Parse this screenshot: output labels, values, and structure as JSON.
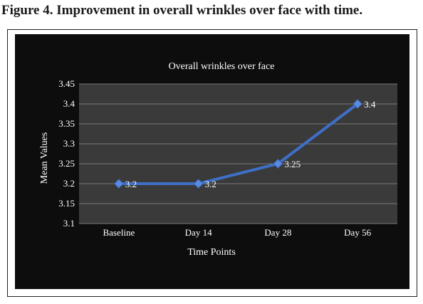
{
  "figure_title": "Figure 4. Improvement in overall wrinkles over face with time.",
  "colors": {
    "background": "#0d0d0d",
    "plot_area": "#3a3a3a",
    "line": "#3e6fc7",
    "marker": "#5b8be0",
    "gridline": "#7a7a7a",
    "text": "#ffffff"
  },
  "chart_data": {
    "type": "line",
    "title": "Overall wrinkles over face",
    "xlabel": "Time Points",
    "ylabel": "Mean Values",
    "categories": [
      "Baseline",
      "Day 14",
      "Day 28",
      "Day 56"
    ],
    "series": [
      {
        "values": [
          3.2,
          3.2,
          3.25,
          3.4
        ],
        "data_labels": [
          "3.2",
          "3.2",
          "3.25",
          "3.4"
        ]
      }
    ],
    "ylim": [
      3.1,
      3.45
    ],
    "yticks": [
      3.1,
      3.15,
      3.2,
      3.25,
      3.3,
      3.35,
      3.4,
      3.45
    ],
    "ytick_labels": [
      "3.1",
      "3.15",
      "3.2",
      "3.25",
      "3.3",
      "3.35",
      "3.4",
      "3.45"
    ],
    "grid": true,
    "legend": "none",
    "marker": "diamond"
  }
}
